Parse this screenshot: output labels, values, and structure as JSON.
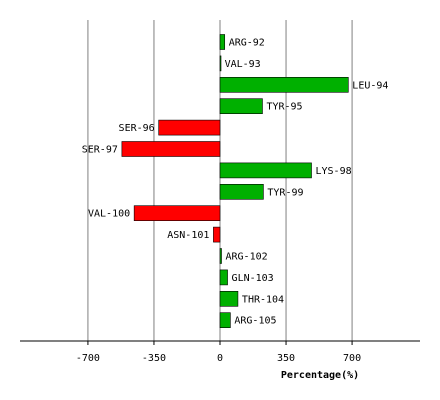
{
  "chart_data": {
    "type": "bar",
    "orientation": "horizontal",
    "title": "",
    "xlabel": "Percentage(%)",
    "ylabel": "",
    "xlim": [
      -1070,
      1050
    ],
    "xticks": [
      -700,
      -350,
      0,
      350,
      700
    ],
    "xtick_labels": [
      "-700",
      "-350",
      "0",
      "350",
      "700"
    ],
    "grid": "vertical",
    "categories": [
      "ARG-92",
      "VAL-93",
      "LEU-94",
      "TYR-95",
      "SER-96",
      "SER-97",
      "LYS-98",
      "TYR-99",
      "VAL-100",
      "ASN-101",
      "ARG-102",
      "GLN-103",
      "THR-104",
      "ARG-105"
    ],
    "values": [
      25,
      3,
      680,
      225,
      -325,
      -520,
      485,
      230,
      -455,
      -35,
      8,
      40,
      95,
      55
    ],
    "colors": {
      "positive": "#00b000",
      "negative": "#ff0000",
      "edge": "#000000",
      "grid": "#808080"
    }
  }
}
